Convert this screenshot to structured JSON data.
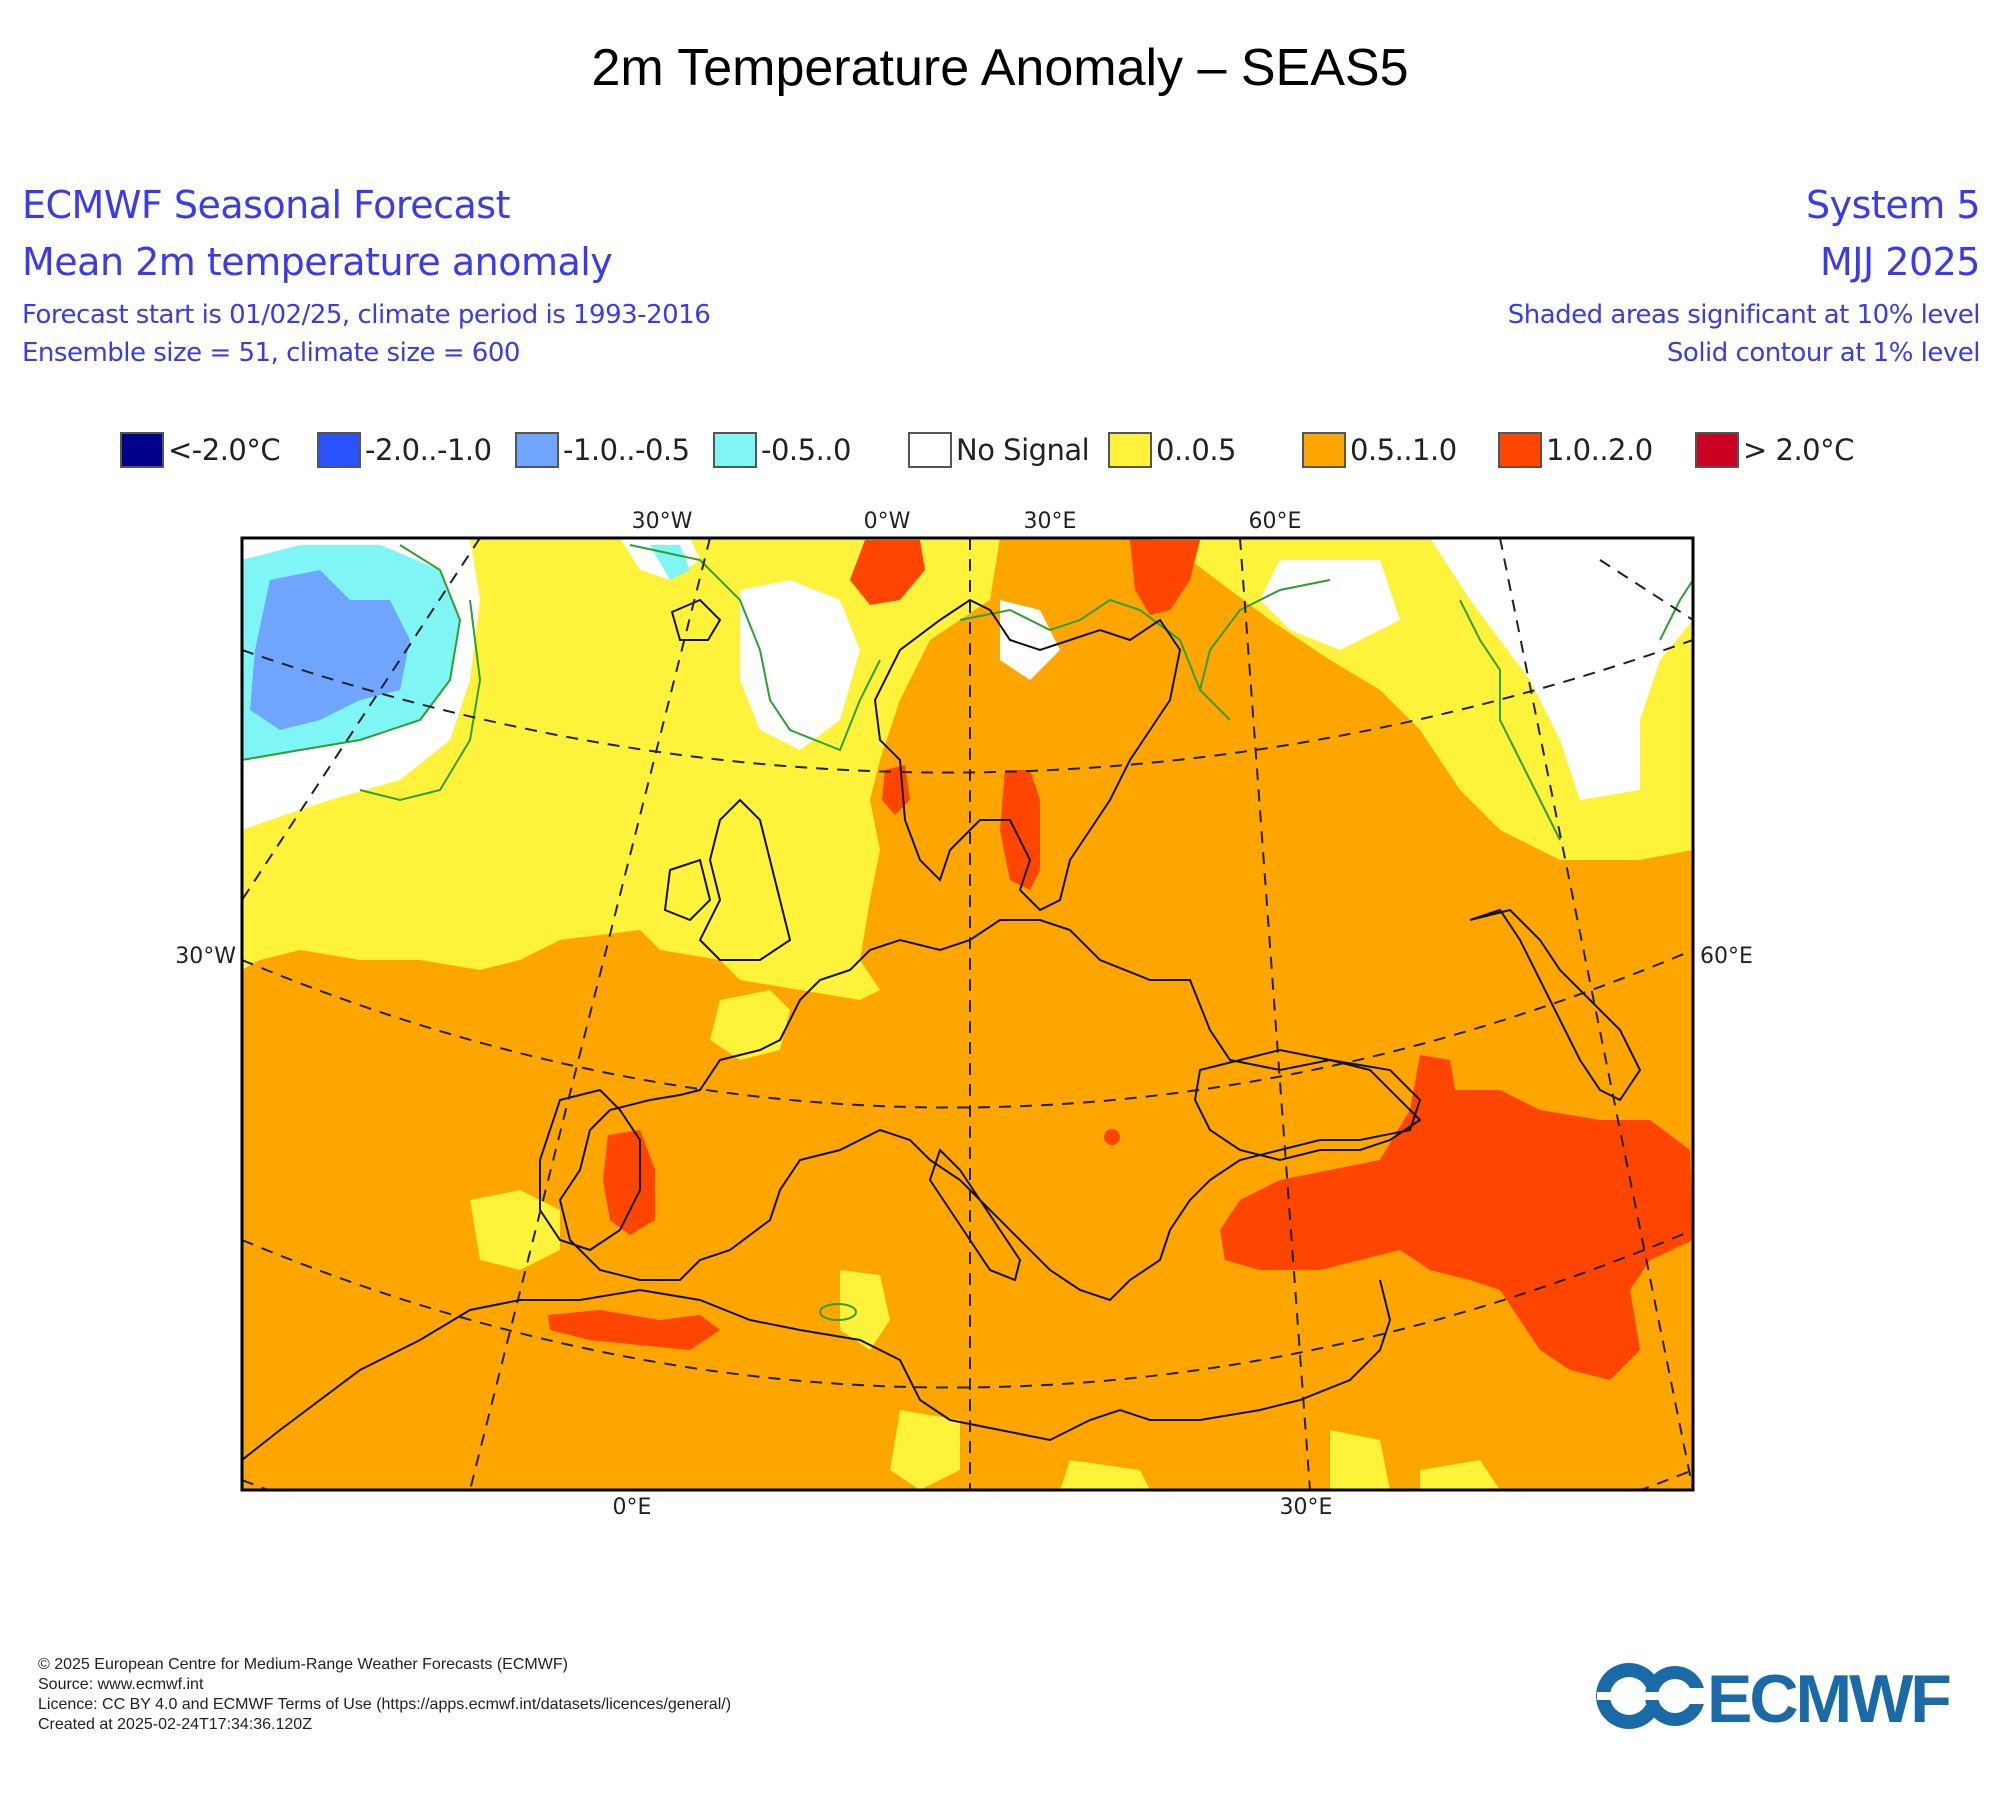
{
  "page_title": "2m Temperature Anomaly – SEAS5",
  "header": {
    "left_title": "ECMWF Seasonal Forecast",
    "left_subtitle": "Mean 2m temperature anomaly",
    "left_line1": "Forecast start is 01/02/25, climate period is 1993-2016",
    "left_line2": "Ensemble size = 51, climate size = 600",
    "right_title": "System 5",
    "right_subtitle": "MJJ 2025",
    "right_line1": "Shaded areas significant at 10% level",
    "right_line2": "Solid contour at 1% level"
  },
  "legend": [
    {
      "label": "<-2.0°C",
      "color": "#00008b"
    },
    {
      "label": "-2.0..-1.0",
      "color": "#2a52ff"
    },
    {
      "label": "-1.0..-0.5",
      "color": "#6fa5ff"
    },
    {
      "label": "-0.5..0",
      "color": "#7ff5f5"
    },
    {
      "label": "No Signal",
      "color": "#ffffff"
    },
    {
      "label": "0..0.5",
      "color": "#fff23a"
    },
    {
      "label": "0.5..1.0",
      "color": "#ffa500"
    },
    {
      "label": "1.0..2.0",
      "color": "#ff4500"
    },
    {
      "label": "> 2.0°C",
      "color": "#cc0022"
    }
  ],
  "map": {
    "top_labels": [
      "30°W",
      "0°W",
      "30°E",
      "60°E"
    ],
    "bottom_labels": [
      "0°E",
      "30°E"
    ],
    "left_label": "30°W",
    "right_label": "60°E",
    "colors": {
      "frame": "#000000",
      "coast": "#111111",
      "significance_contour": "#2ea02e",
      "graticule": "#222222"
    }
  },
  "footer": {
    "line1": "© 2025 European Centre for Medium-Range Weather Forecasts (ECMWF)",
    "line2": "Source: www.ecmwf.int",
    "line3": "Licence: CC BY 4.0 and ECMWF Terms of Use (https://apps.ecmwf.int/datasets/licences/general/)",
    "line4": "Created at 2025-02-24T17:34:36.120Z"
  },
  "logo": {
    "text": "ECMWF",
    "color": "#1a6aa8"
  }
}
